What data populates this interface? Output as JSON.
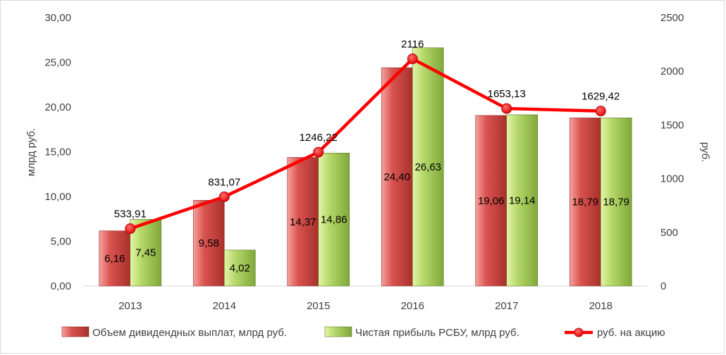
{
  "chart_data": {
    "type": "bar",
    "categories": [
      "2013",
      "2014",
      "2015",
      "2016",
      "2017",
      "2018"
    ],
    "series": [
      {
        "name": "Объем дивидендных выплат, млрд руб.",
        "kind": "bar",
        "axis": "left",
        "values": [
          6.16,
          9.58,
          14.37,
          24.4,
          19.06,
          18.79
        ],
        "labels": [
          "6,16",
          "9,58",
          "14,37",
          "24,40",
          "19,06",
          "18,79"
        ],
        "color": "#c0504d"
      },
      {
        "name": "Чистая прибыль РСБУ, млрд руб.",
        "kind": "bar",
        "axis": "left",
        "values": [
          7.45,
          4.02,
          14.86,
          26.63,
          19.14,
          18.79
        ],
        "labels": [
          "7,45",
          "4,02",
          "14,86",
          "26,63",
          "19,14",
          "18,79"
        ],
        "color": "#9bbb59"
      },
      {
        "name": "руб. на акцию",
        "kind": "line",
        "axis": "right",
        "values": [
          533.91,
          831.07,
          1246.22,
          2116,
          1653.13,
          1629.42
        ],
        "labels": [
          "533,91",
          "831,07",
          "1246,22",
          "2116",
          "1653,13",
          "1629,42"
        ],
        "color": "#ff0000"
      }
    ],
    "ylabel": "млрд руб.",
    "y2label": "руб.",
    "ylim": [
      0,
      30
    ],
    "y2lim": [
      0,
      2500
    ],
    "yticks": [
      "0,00",
      "5,00",
      "10,00",
      "15,00",
      "20,00",
      "25,00",
      "30,00"
    ],
    "y2ticks": [
      "0",
      "500",
      "1000",
      "1500",
      "2000",
      "2500"
    ],
    "grid": false,
    "legend": "bottom"
  }
}
